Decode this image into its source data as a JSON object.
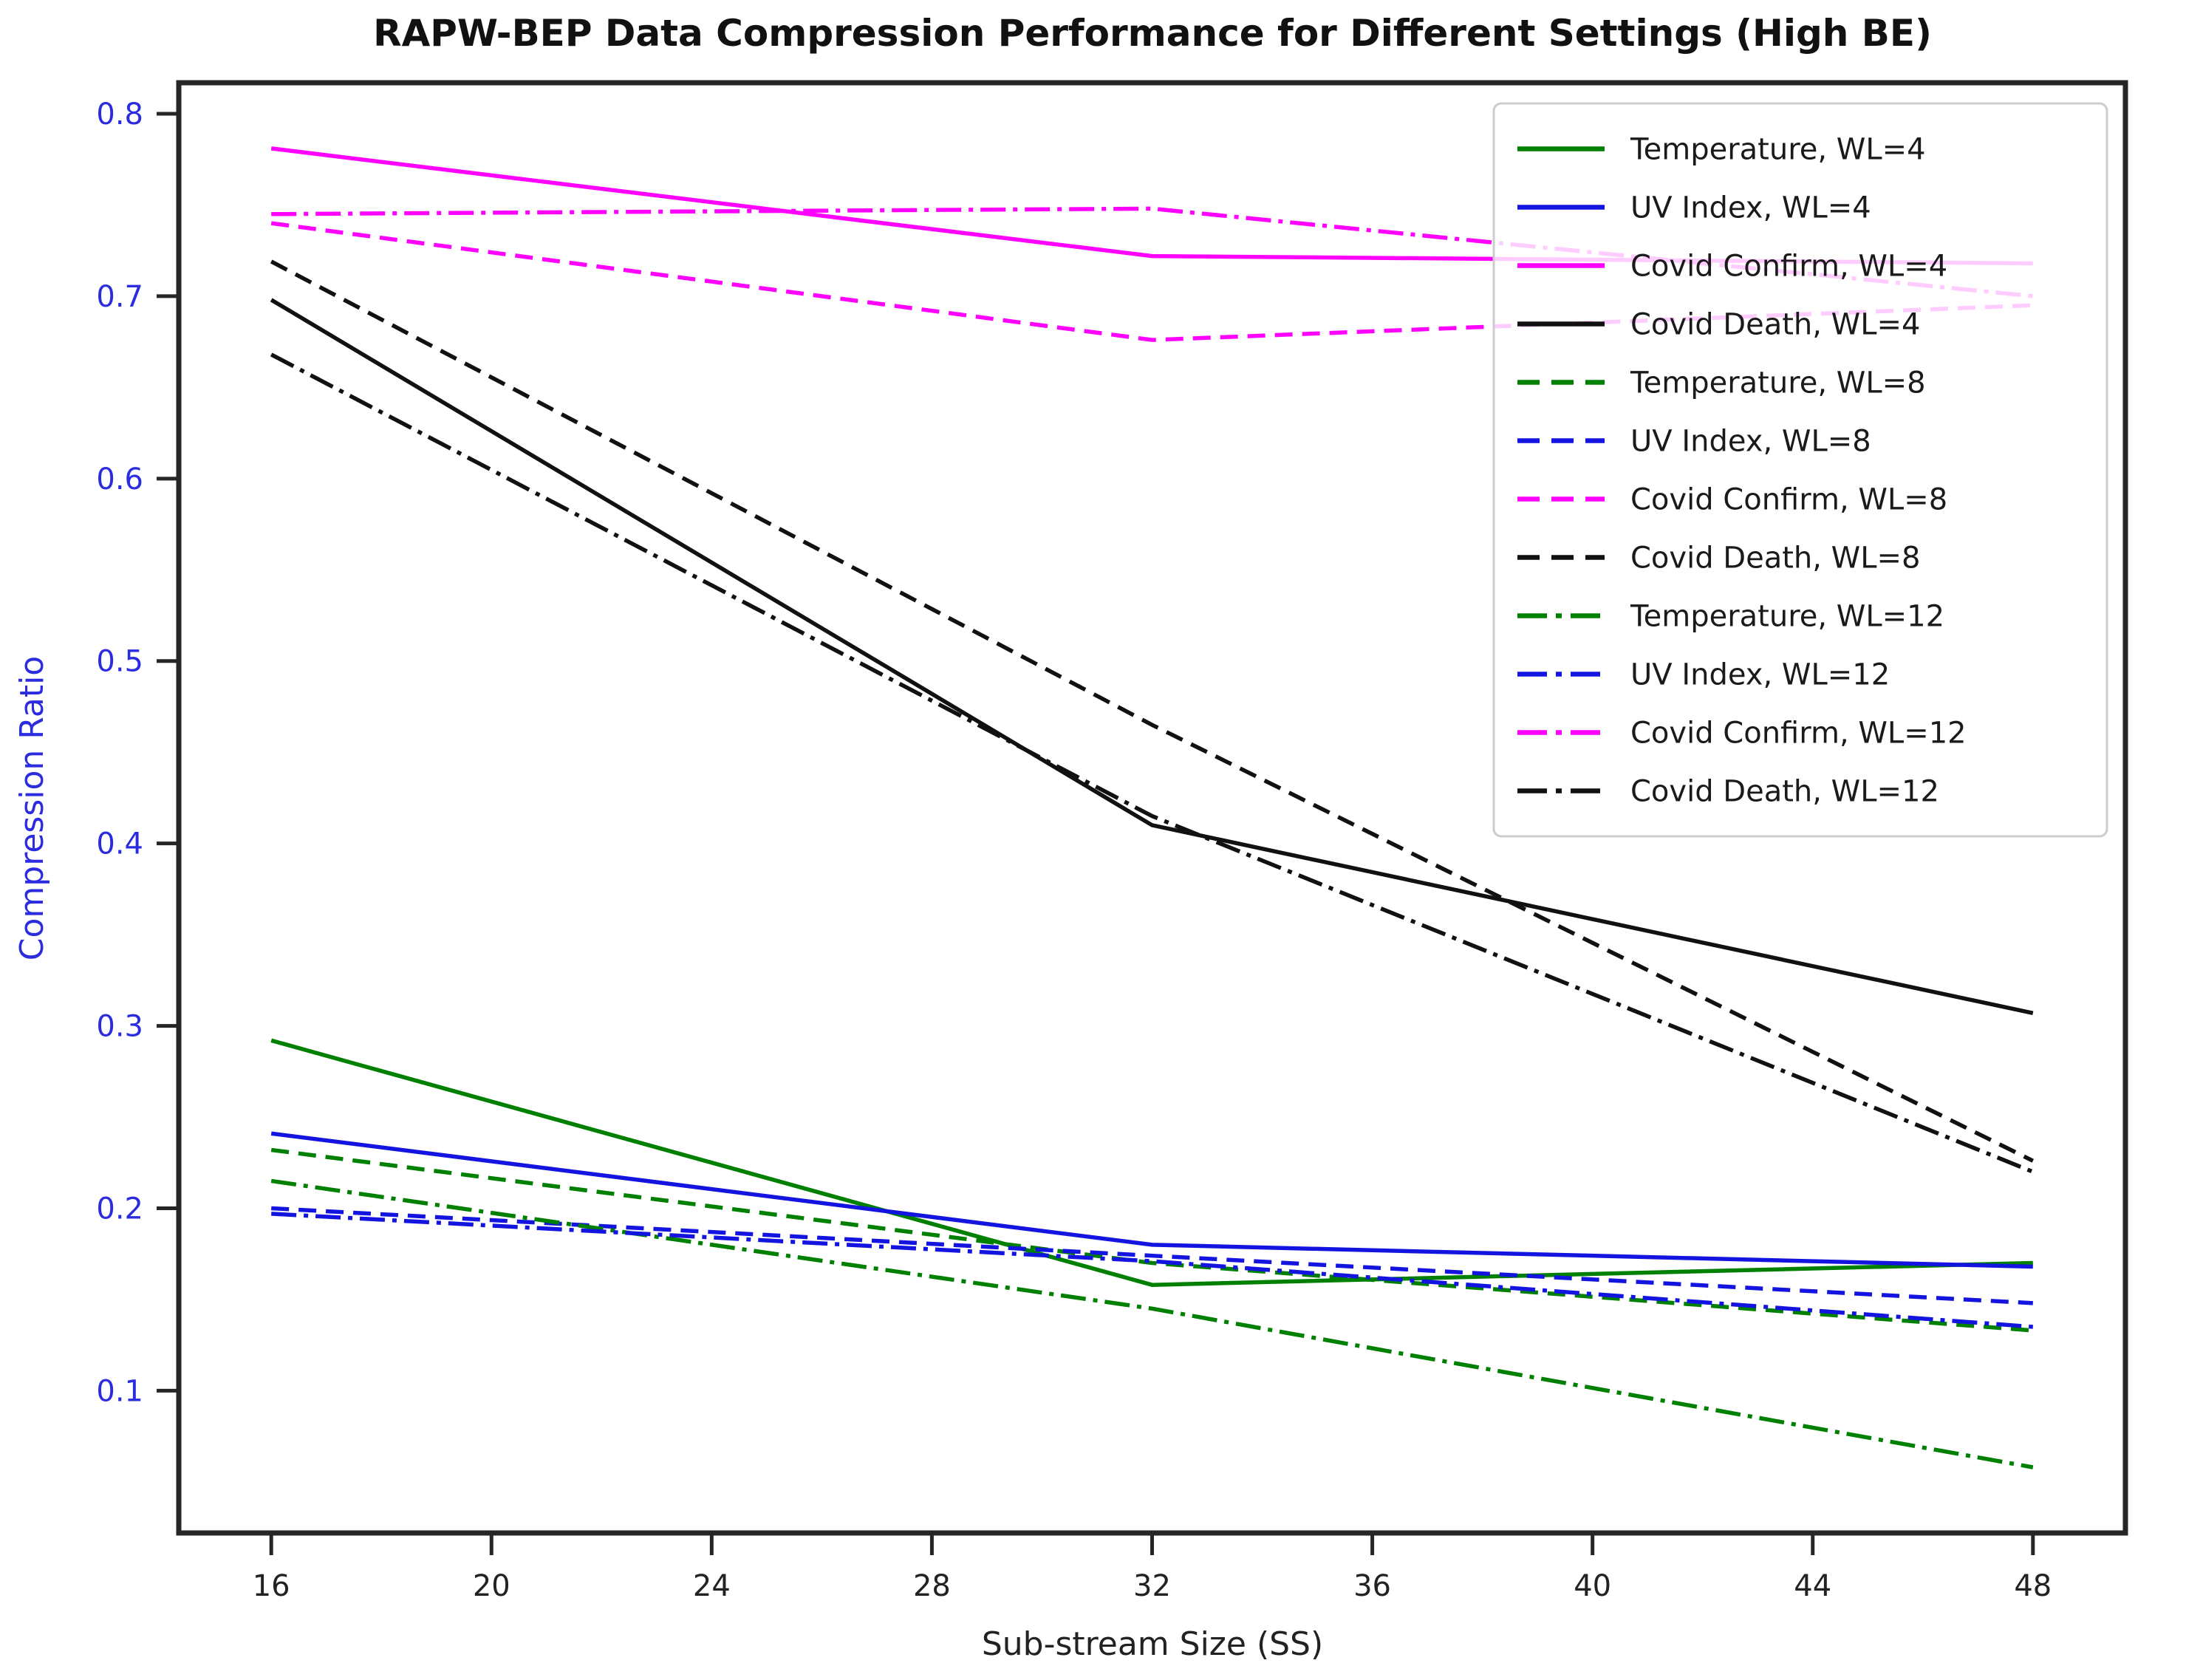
{
  "title": "RAPW-BEP Data Compression Performance for Different Settings (High BE)",
  "chart_data": {
    "type": "line",
    "title": "RAPW-BEP Data Compression Performance for Different Settings (High BE)",
    "xlabel": "Sub-stream Size (SS)",
    "ylabel": "Compression Ratio",
    "x": [
      16,
      32,
      48
    ],
    "x_ticks": [
      16,
      20,
      24,
      28,
      32,
      36,
      40,
      44,
      48
    ],
    "y_ticks": [
      "0.1",
      "0.2",
      "0.3",
      "0.4",
      "0.5",
      "0.6",
      "0.7",
      "0.8"
    ],
    "y_tick_values": [
      0.1,
      0.2,
      0.3,
      0.4,
      0.5,
      0.6,
      0.7,
      0.8
    ],
    "xlim": [
      14.32,
      49.68
    ],
    "ylim": [
      0.022,
      0.817
    ],
    "grid": false,
    "legend_position": "upper right",
    "axis_text_color_y": "#2b2bdf",
    "axis_text_color_x": "#222222",
    "series": [
      {
        "name": "Temperature, WL=4",
        "color": "#008000",
        "style": "solid",
        "values": [
          0.292,
          0.158,
          0.17
        ]
      },
      {
        "name": "UV Index, WL=4",
        "color": "#1414e0",
        "style": "solid",
        "values": [
          0.241,
          0.18,
          0.168
        ]
      },
      {
        "name": "Covid Confirm, WL=4",
        "color": "#ff00ff",
        "style": "solid",
        "values": [
          0.781,
          0.722,
          0.718
        ]
      },
      {
        "name": "Covid Death, WL=4",
        "color": "#111111",
        "style": "solid",
        "values": [
          0.698,
          0.41,
          0.307
        ]
      },
      {
        "name": "Temperature, WL=8",
        "color": "#008000",
        "style": "dashed",
        "values": [
          0.232,
          0.17,
          0.133
        ]
      },
      {
        "name": "UV Index, WL=8",
        "color": "#1414e0",
        "style": "dashed",
        "values": [
          0.2,
          0.174,
          0.148
        ]
      },
      {
        "name": "Covid Confirm, WL=8",
        "color": "#ff00ff",
        "style": "dashed",
        "values": [
          0.74,
          0.676,
          0.695
        ]
      },
      {
        "name": "Covid Death, WL=8",
        "color": "#111111",
        "style": "dashed",
        "values": [
          0.719,
          0.465,
          0.226
        ]
      },
      {
        "name": "Temperature, WL=12",
        "color": "#008000",
        "style": "dashdot",
        "values": [
          0.215,
          0.145,
          0.058
        ]
      },
      {
        "name": "UV Index, WL=12",
        "color": "#1414e0",
        "style": "dashdot",
        "values": [
          0.197,
          0.171,
          0.135
        ]
      },
      {
        "name": "Covid Confirm, WL=12",
        "color": "#ff00ff",
        "style": "dashdot",
        "values": [
          0.745,
          0.748,
          0.7
        ]
      },
      {
        "name": "Covid Death, WL=12",
        "color": "#111111",
        "style": "dashdot",
        "values": [
          0.668,
          0.415,
          0.22
        ]
      }
    ]
  }
}
